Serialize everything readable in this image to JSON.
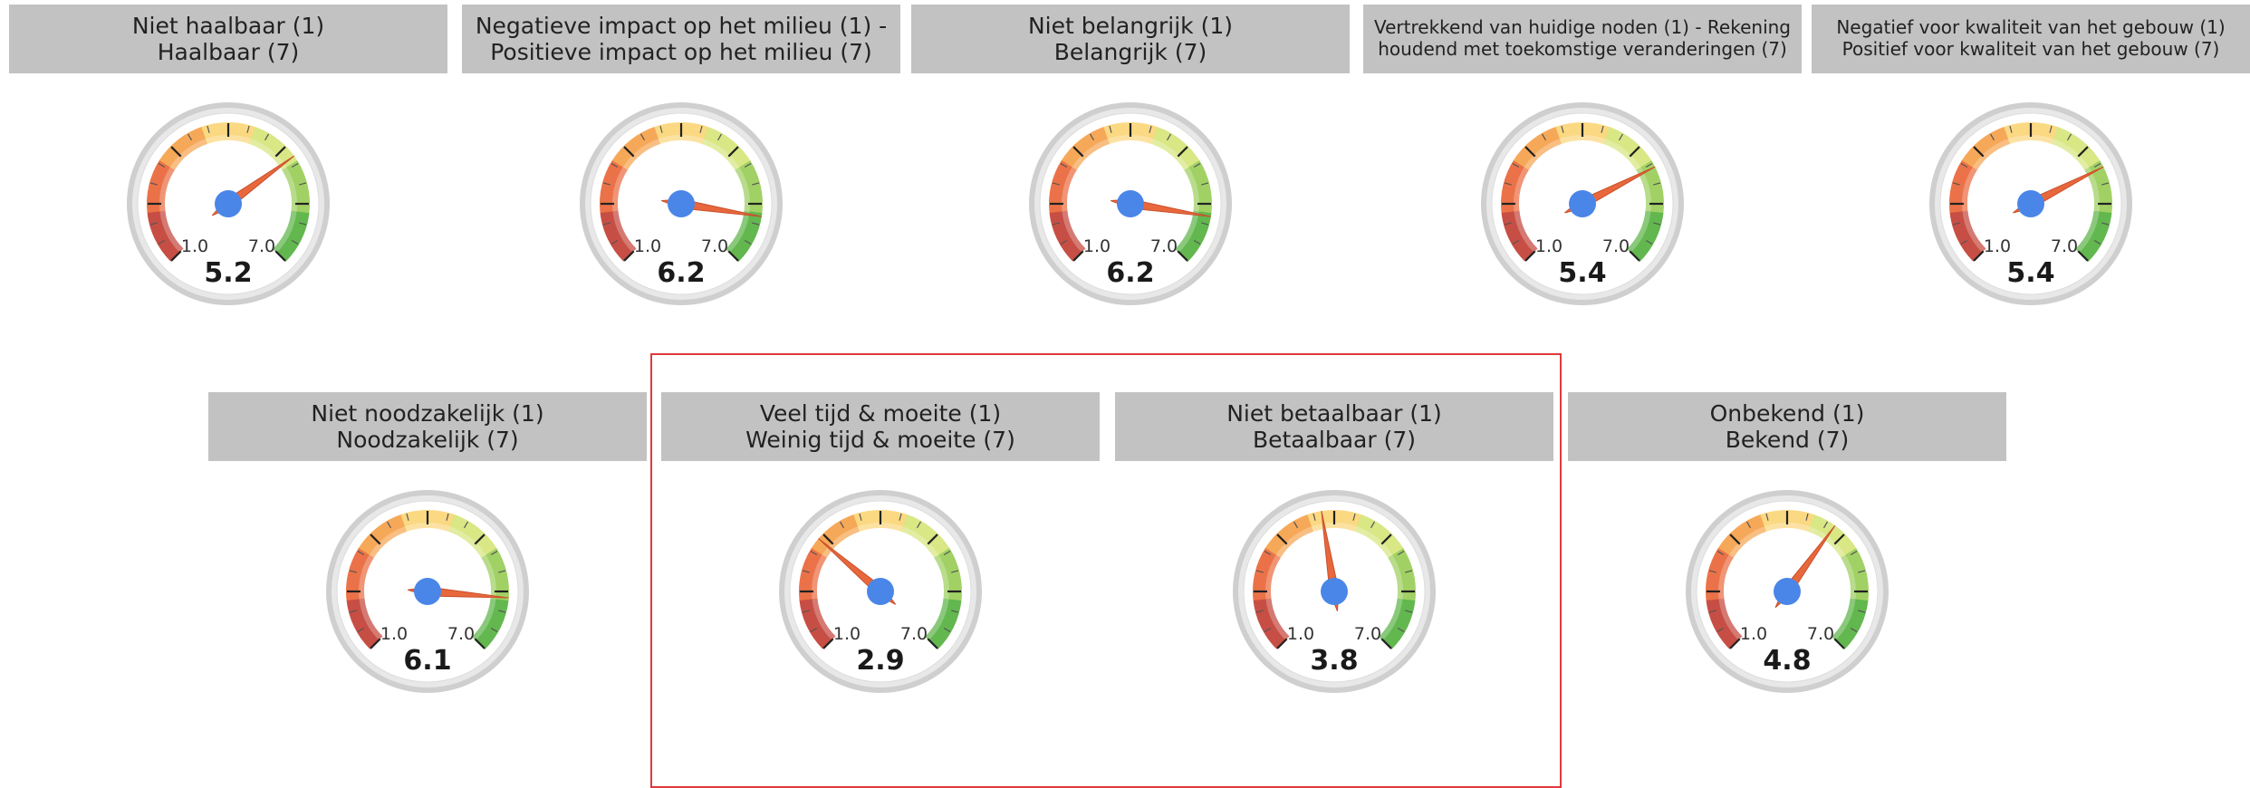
{
  "chart_data": [
    {
      "type": "gauge",
      "title_line1": "Niet haalbaar (1)",
      "title_line2": "Haalbaar (7)",
      "value": 5.2,
      "value_label": "5.2",
      "min": 1.0,
      "max": 7.0,
      "min_label": "1.0",
      "max_label": "7.0"
    },
    {
      "type": "gauge",
      "title_line1": "Negatieve impact op het milieu (1) -",
      "title_line2": "Positieve impact op het milieu (7)",
      "value": 6.2,
      "value_label": "6.2",
      "min": 1.0,
      "max": 7.0,
      "min_label": "1.0",
      "max_label": "7.0"
    },
    {
      "type": "gauge",
      "title_line1": "Niet belangrijk (1)",
      "title_line2": "Belangrijk (7)",
      "value": 6.2,
      "value_label": "6.2",
      "min": 1.0,
      "max": 7.0,
      "min_label": "1.0",
      "max_label": "7.0"
    },
    {
      "type": "gauge",
      "title_line1": "Vertrekkend van huidige noden (1) - Rekening",
      "title_line2": "houdend met toekomstige veranderingen (7)",
      "value": 5.4,
      "value_label": "5.4",
      "min": 1.0,
      "max": 7.0,
      "min_label": "1.0",
      "max_label": "7.0"
    },
    {
      "type": "gauge",
      "title_line1": "Negatief voor kwaliteit van het gebouw (1)",
      "title_line2": "Positief voor kwaliteit van het gebouw (7)",
      "value": 5.4,
      "value_label": "5.4",
      "min": 1.0,
      "max": 7.0,
      "min_label": "1.0",
      "max_label": "7.0"
    },
    {
      "type": "gauge",
      "title_line1": "Niet noodzakelijk (1)",
      "title_line2": "Noodzakelijk (7)",
      "value": 6.1,
      "value_label": "6.1",
      "min": 1.0,
      "max": 7.0,
      "min_label": "1.0",
      "max_label": "7.0"
    },
    {
      "type": "gauge",
      "title_line1": "Veel tijd & moeite (1)",
      "title_line2": "Weinig tijd & moeite (7)",
      "value": 2.9,
      "value_label": "2.9",
      "min": 1.0,
      "max": 7.0,
      "min_label": "1.0",
      "max_label": "7.0"
    },
    {
      "type": "gauge",
      "title_line1": "Niet betaalbaar (1)",
      "title_line2": "Betaalbaar (7)",
      "value": 3.8,
      "value_label": "3.8",
      "min": 1.0,
      "max": 7.0,
      "min_label": "1.0",
      "max_label": "7.0"
    },
    {
      "type": "gauge",
      "title_line1": "Onbekend (1)",
      "title_line2": "Bekend (7)",
      "value": 4.8,
      "value_label": "4.8",
      "min": 1.0,
      "max": 7.0,
      "min_label": "1.0",
      "max_label": "7.0"
    }
  ],
  "colors": {
    "header_bg": "#c2c2c2",
    "highlight_border": "#e0393b",
    "needle": "#e8673c",
    "hub": "#4a86e8",
    "bands": [
      "#c4443a",
      "#ea6a3e",
      "#f6a350",
      "#fbd77c",
      "#d7e67e",
      "#9ccf5c",
      "#5bb346"
    ]
  }
}
